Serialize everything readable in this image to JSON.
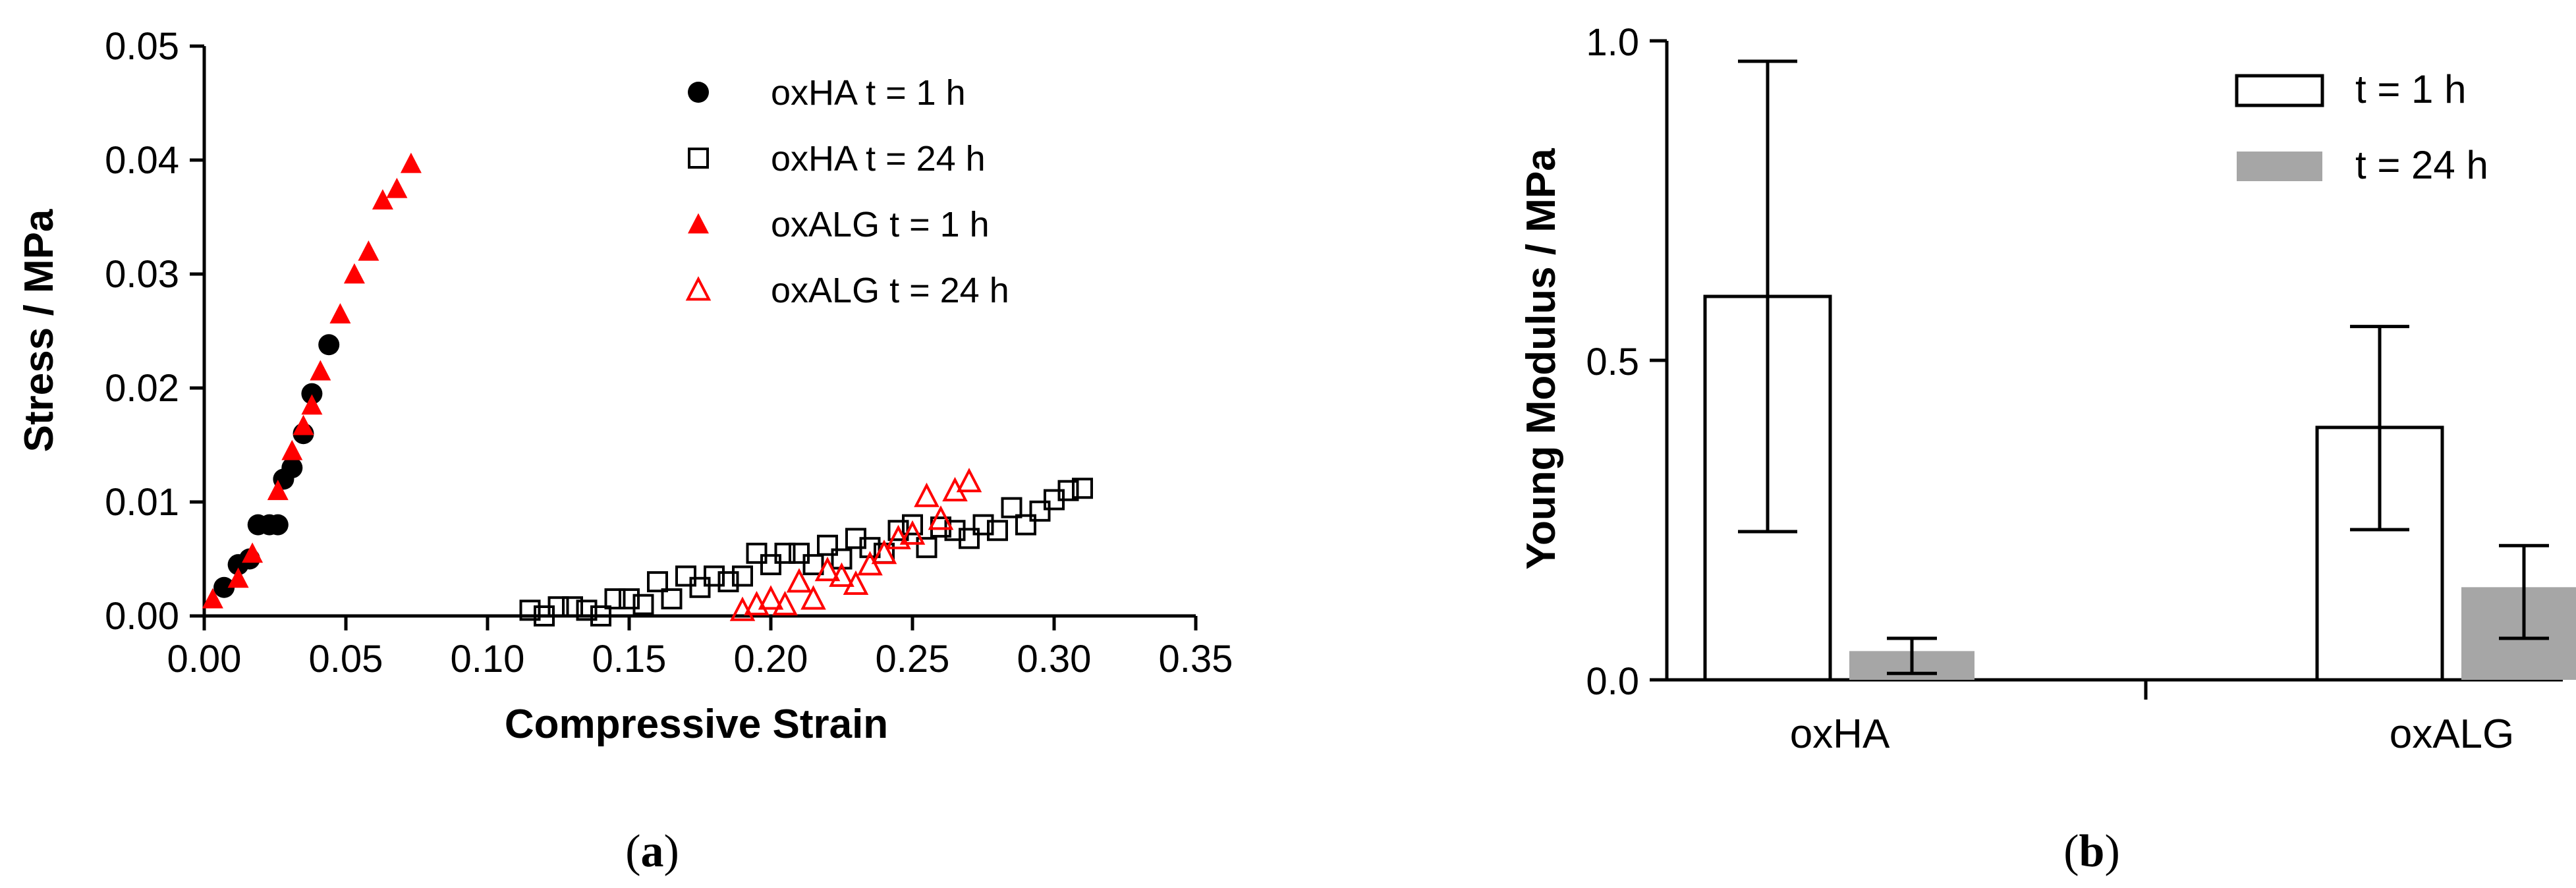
{
  "chart_data": [
    {
      "type": "scatter",
      "panel_label": "a",
      "xlabel": "Compressive Strain",
      "ylabel": "Stress / MPa",
      "xlim": [
        0,
        0.35
      ],
      "ylim": [
        0,
        0.05
      ],
      "xticks": [
        "0.00",
        "0.05",
        "0.10",
        "0.15",
        "0.20",
        "0.25",
        "0.30",
        "0.35"
      ],
      "yticks": [
        "0.00",
        "0.01",
        "0.02",
        "0.03",
        "0.04",
        "0.05"
      ],
      "legend": "top-right",
      "series": [
        {
          "name": "oxHA t = 1 h",
          "marker": "filled-circle",
          "color": "#000000",
          "points": [
            [
              0.007,
              0.0025
            ],
            [
              0.012,
              0.0045
            ],
            [
              0.016,
              0.005
            ],
            [
              0.019,
              0.008
            ],
            [
              0.023,
              0.008
            ],
            [
              0.026,
              0.008
            ],
            [
              0.028,
              0.012
            ],
            [
              0.031,
              0.013
            ],
            [
              0.035,
              0.016
            ],
            [
              0.038,
              0.0195
            ],
            [
              0.044,
              0.0238
            ]
          ]
        },
        {
          "name": "oxHA t = 24 h",
          "marker": "open-square",
          "color": "#000000",
          "points": [
            [
              0.115,
              0.0005
            ],
            [
              0.12,
              0.0
            ],
            [
              0.125,
              0.0008
            ],
            [
              0.13,
              0.0008
            ],
            [
              0.135,
              0.0005
            ],
            [
              0.14,
              0.0
            ],
            [
              0.145,
              0.0015
            ],
            [
              0.15,
              0.0015
            ],
            [
              0.155,
              0.001
            ],
            [
              0.16,
              0.003
            ],
            [
              0.165,
              0.0015
            ],
            [
              0.17,
              0.0035
            ],
            [
              0.175,
              0.0025
            ],
            [
              0.18,
              0.0035
            ],
            [
              0.185,
              0.003
            ],
            [
              0.19,
              0.0035
            ],
            [
              0.195,
              0.0055
            ],
            [
              0.2,
              0.0045
            ],
            [
              0.205,
              0.0055
            ],
            [
              0.21,
              0.0055
            ],
            [
              0.215,
              0.0045
            ],
            [
              0.22,
              0.0062
            ],
            [
              0.225,
              0.005
            ],
            [
              0.23,
              0.0068
            ],
            [
              0.235,
              0.006
            ],
            [
              0.24,
              0.0055
            ],
            [
              0.245,
              0.0075
            ],
            [
              0.25,
              0.008
            ],
            [
              0.255,
              0.006
            ],
            [
              0.26,
              0.0078
            ],
            [
              0.265,
              0.0075
            ],
            [
              0.27,
              0.0068
            ],
            [
              0.275,
              0.008
            ],
            [
              0.28,
              0.0075
            ],
            [
              0.285,
              0.0095
            ],
            [
              0.29,
              0.008
            ],
            [
              0.295,
              0.0092
            ],
            [
              0.3,
              0.0102
            ],
            [
              0.305,
              0.011
            ],
            [
              0.31,
              0.0112
            ]
          ]
        },
        {
          "name": "oxALG t = 1 h",
          "marker": "filled-triangle",
          "color": "#ff0000",
          "points": [
            [
              0.003,
              0.0015
            ],
            [
              0.012,
              0.0033
            ],
            [
              0.017,
              0.0055
            ],
            [
              0.026,
              0.011
            ],
            [
              0.031,
              0.0145
            ],
            [
              0.035,
              0.0167
            ],
            [
              0.038,
              0.0185
            ],
            [
              0.041,
              0.0215
            ],
            [
              0.048,
              0.0265
            ],
            [
              0.053,
              0.03
            ],
            [
              0.058,
              0.032
            ],
            [
              0.063,
              0.0365
            ],
            [
              0.068,
              0.0375
            ],
            [
              0.073,
              0.0397
            ]
          ]
        },
        {
          "name": "oxALG t = 24 h",
          "marker": "open-triangle",
          "color": "#ff0000",
          "points": [
            [
              0.19,
              0.0005
            ],
            [
              0.195,
              0.001
            ],
            [
              0.2,
              0.0015
            ],
            [
              0.205,
              0.001
            ],
            [
              0.21,
              0.003
            ],
            [
              0.215,
              0.0015
            ],
            [
              0.22,
              0.004
            ],
            [
              0.225,
              0.0035
            ],
            [
              0.23,
              0.0028
            ],
            [
              0.235,
              0.0045
            ],
            [
              0.24,
              0.0055
            ],
            [
              0.245,
              0.0068
            ],
            [
              0.25,
              0.0072
            ],
            [
              0.255,
              0.0105
            ],
            [
              0.26,
              0.0085
            ],
            [
              0.265,
              0.011
            ],
            [
              0.27,
              0.0118
            ]
          ]
        }
      ]
    },
    {
      "type": "bar",
      "panel_label": "b",
      "ylabel": "Young Modulus / MPa",
      "ylim": [
        0,
        1.0
      ],
      "yticks": [
        "0.0",
        "0.5",
        "1.0"
      ],
      "categories": [
        "oxHA",
        "oxALG"
      ],
      "legend": "top-right",
      "series": [
        {
          "name": "t = 1 h",
          "fill": "#ffffff",
          "values": [
            0.6,
            0.395
          ],
          "error_low": [
            0.232,
            0.235
          ],
          "error_high": [
            0.968,
            0.553
          ]
        },
        {
          "name": "t = 24 h",
          "fill": "#a6a6a6",
          "values": [
            0.045,
            0.145
          ],
          "error_low": [
            0.01,
            0.065
          ],
          "error_high": [
            0.065,
            0.21
          ]
        }
      ]
    }
  ]
}
